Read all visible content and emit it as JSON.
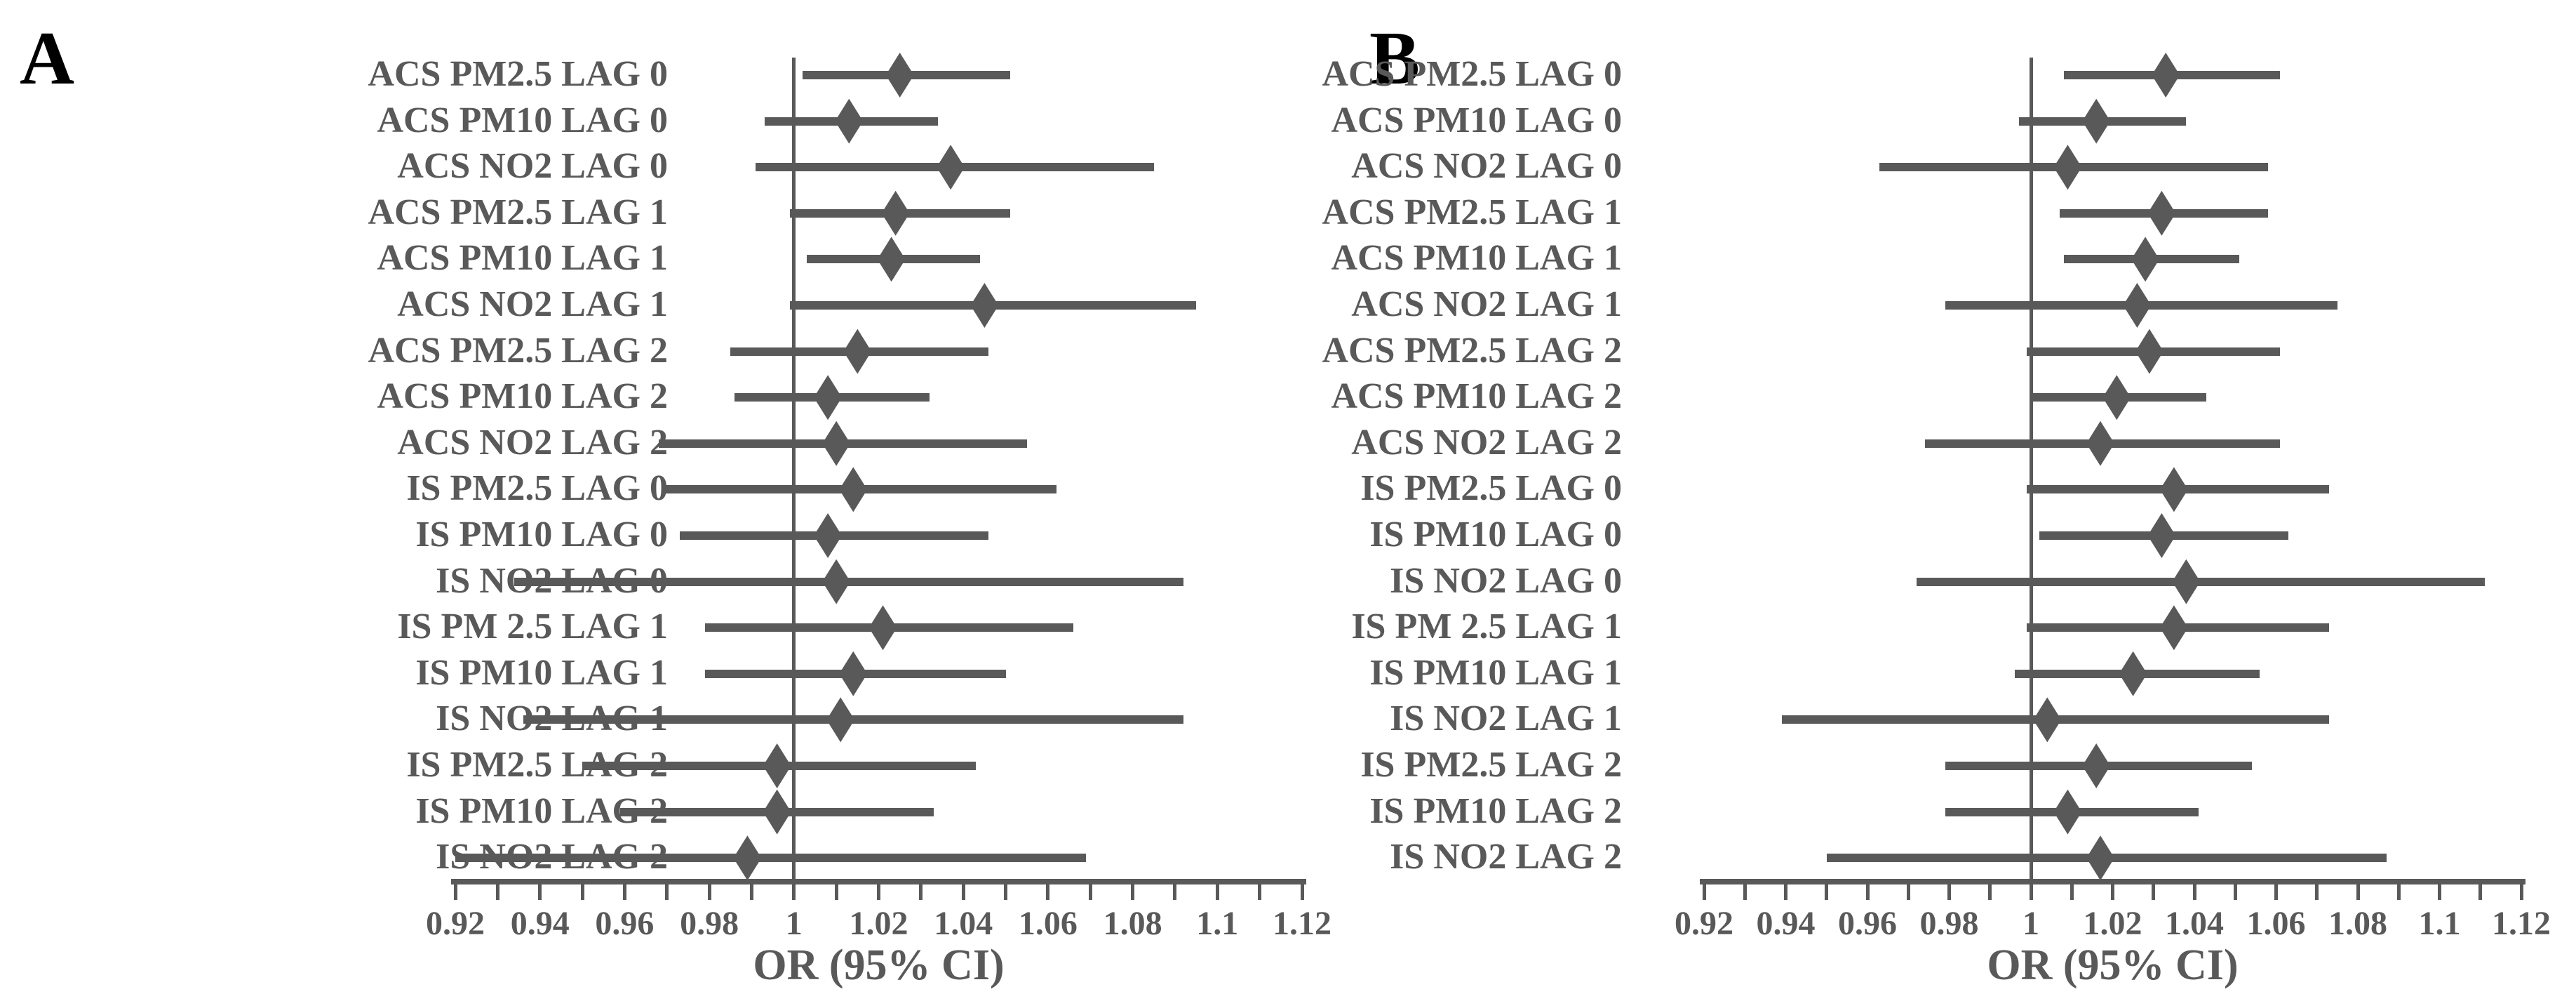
{
  "figure": {
    "axis": {
      "min": 0.92,
      "max": 1.12,
      "minor_step": 0.01,
      "tick_labels": [
        "0.92",
        "0.94",
        "0.96",
        "0.98",
        "1",
        "1.02",
        "1.04",
        "1.06",
        "1.08",
        "1.1",
        "1.12"
      ],
      "reference_line": 1,
      "title": "OR (95% CI)"
    },
    "colors": {
      "ink": "#595959",
      "panel_letter": "#000000",
      "background": "#ffffff"
    }
  },
  "chart_data": [
    {
      "type": "scatter",
      "title": "A",
      "xlabel": "OR (95% CI)",
      "xlim": [
        0.92,
        1.12
      ],
      "x_ticks": [
        0.92,
        0.94,
        0.96,
        0.98,
        1,
        1.02,
        1.04,
        1.06,
        1.08,
        1.1,
        1.12
      ],
      "reference_x": 1,
      "legend": null,
      "rows": [
        {
          "label": "ACS PM2.5 LAG 0",
          "or": 1.025,
          "lo": 1.002,
          "hi": 1.051
        },
        {
          "label": "ACS PM10 LAG 0",
          "or": 1.013,
          "lo": 0.993,
          "hi": 1.034
        },
        {
          "label": "ACS NO2 LAG 0",
          "or": 1.037,
          "lo": 0.991,
          "hi": 1.085
        },
        {
          "label": "ACS PM2.5 LAG 1",
          "or": 1.024,
          "lo": 0.999,
          "hi": 1.051
        },
        {
          "label": "ACS PM10 LAG 1",
          "or": 1.023,
          "lo": 1.003,
          "hi": 1.044
        },
        {
          "label": "ACS NO2 LAG 1",
          "or": 1.045,
          "lo": 0.999,
          "hi": 1.095
        },
        {
          "label": "ACS PM2.5 LAG 2",
          "or": 1.015,
          "lo": 0.985,
          "hi": 1.046
        },
        {
          "label": "ACS PM10 LAG 2",
          "or": 1.008,
          "lo": 0.986,
          "hi": 1.032
        },
        {
          "label": "ACS NO2 LAG 2",
          "or": 1.01,
          "lo": 0.968,
          "hi": 1.055
        },
        {
          "label": "IS PM2.5 LAG 0",
          "or": 1.014,
          "lo": 0.969,
          "hi": 1.062
        },
        {
          "label": "IS PM10 LAG 0",
          "or": 1.008,
          "lo": 0.973,
          "hi": 1.046
        },
        {
          "label": "IS NO2 LAG 0",
          "or": 1.01,
          "lo": 0.934,
          "hi": 1.092
        },
        {
          "label": "IS PM 2.5 LAG 1",
          "or": 1.021,
          "lo": 0.979,
          "hi": 1.066
        },
        {
          "label": "IS PM10 LAG 1",
          "or": 1.014,
          "lo": 0.979,
          "hi": 1.05
        },
        {
          "label": "IS NO2 LAG 1",
          "or": 1.011,
          "lo": 0.936,
          "hi": 1.092
        },
        {
          "label": "IS PM2.5 LAG 2",
          "or": 0.996,
          "lo": 0.95,
          "hi": 1.043
        },
        {
          "label": "IS PM10 LAG 2",
          "or": 0.996,
          "lo": 0.959,
          "hi": 1.033
        },
        {
          "label": "IS NO2 LAG 2",
          "or": 0.989,
          "lo": 0.92,
          "hi": 1.069
        }
      ]
    },
    {
      "type": "scatter",
      "title": "B",
      "xlabel": "OR (95% CI)",
      "xlim": [
        0.92,
        1.12
      ],
      "x_ticks": [
        0.92,
        0.94,
        0.96,
        0.98,
        1,
        1.02,
        1.04,
        1.06,
        1.08,
        1.1,
        1.12
      ],
      "reference_x": 1,
      "legend": null,
      "rows": [
        {
          "label": "ACS PM2.5 LAG 0",
          "or": 1.033,
          "lo": 1.008,
          "hi": 1.061
        },
        {
          "label": "ACS PM10 LAG 0",
          "or": 1.016,
          "lo": 0.997,
          "hi": 1.038
        },
        {
          "label": "ACS NO2 LAG 0",
          "or": 1.009,
          "lo": 0.963,
          "hi": 1.058
        },
        {
          "label": "ACS PM2.5 LAG 1",
          "or": 1.032,
          "lo": 1.007,
          "hi": 1.058
        },
        {
          "label": "ACS PM10 LAG 1",
          "or": 1.028,
          "lo": 1.008,
          "hi": 1.051
        },
        {
          "label": "ACS NO2 LAG 1",
          "or": 1.026,
          "lo": 0.979,
          "hi": 1.075
        },
        {
          "label": "ACS PM2.5 LAG 2",
          "or": 1.029,
          "lo": 0.999,
          "hi": 1.061
        },
        {
          "label": "ACS PM10 LAG 2",
          "or": 1.021,
          "lo": 1.0,
          "hi": 1.043
        },
        {
          "label": "ACS NO2 LAG 2",
          "or": 1.017,
          "lo": 0.974,
          "hi": 1.061
        },
        {
          "label": "IS PM2.5 LAG 0",
          "or": 1.035,
          "lo": 0.999,
          "hi": 1.073
        },
        {
          "label": "IS PM10 LAG 0",
          "or": 1.032,
          "lo": 1.002,
          "hi": 1.063
        },
        {
          "label": "IS NO2 LAG 0",
          "or": 1.038,
          "lo": 0.972,
          "hi": 1.111
        },
        {
          "label": "IS PM 2.5 LAG 1",
          "or": 1.035,
          "lo": 0.999,
          "hi": 1.073
        },
        {
          "label": "IS PM10 LAG 1",
          "or": 1.025,
          "lo": 0.996,
          "hi": 1.056
        },
        {
          "label": "IS NO2 LAG 1",
          "or": 1.004,
          "lo": 0.939,
          "hi": 1.073
        },
        {
          "label": "IS PM2.5 LAG 2",
          "or": 1.016,
          "lo": 0.979,
          "hi": 1.054
        },
        {
          "label": "IS PM10 LAG 2",
          "or": 1.009,
          "lo": 0.979,
          "hi": 1.041
        },
        {
          "label": "IS NO2 LAG 2",
          "or": 1.017,
          "lo": 0.95,
          "hi": 1.087
        }
      ]
    }
  ]
}
